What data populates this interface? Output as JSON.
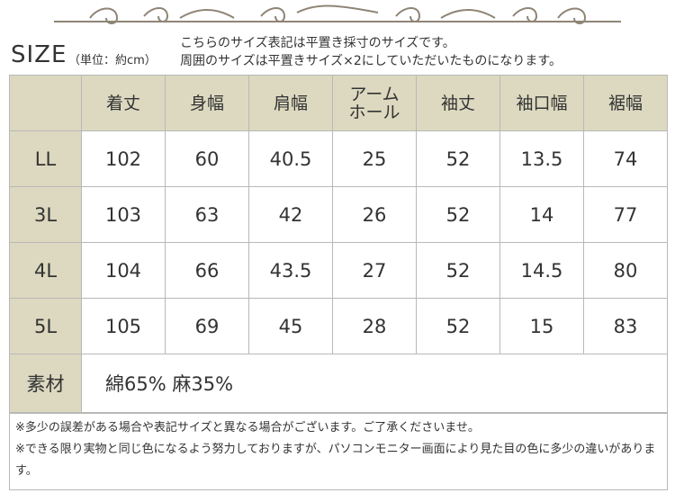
{
  "header": {
    "title": "SIZE",
    "unit": "（単位：約cm）",
    "notes": [
      "こちらのサイズ表記は平置き採寸のサイズです。",
      "周囲のサイズは平置きサイズ×2にしていただいたものになります。"
    ]
  },
  "table": {
    "columns": [
      "着丈",
      "身幅",
      "肩幅",
      "アーム\nホール",
      "袖丈",
      "袖口幅",
      "裾幅"
    ],
    "rows": [
      [
        "LL",
        "102",
        "60",
        "40.5",
        "25",
        "52",
        "13.5",
        "74"
      ],
      [
        "3L",
        "103",
        "63",
        "42",
        "26",
        "52",
        "14",
        "77"
      ],
      [
        "4L",
        "104",
        "66",
        "43.5",
        "27",
        "52",
        "14.5",
        "80"
      ],
      [
        "5L",
        "105",
        "69",
        "45",
        "28",
        "52",
        "15",
        "83"
      ]
    ]
  },
  "material": {
    "label": "素材",
    "text": "綿65% 麻35%"
  },
  "footnotes": [
    "※多少の誤差がある場合や表記サイズと異なる場合がございます。ご了承くださいませ。",
    "※できる限り実物と同じ色になるよう努力しておりますが、パソコンモニター画面により見た目の色に多少の違いがあります。"
  ]
}
